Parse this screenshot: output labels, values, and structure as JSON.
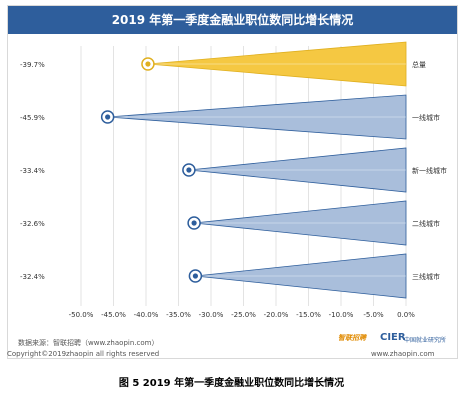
{
  "title": "2019 年第一季度金融业职位数同比增长情况",
  "chart_data": {
    "type": "bar",
    "categories": [
      "总量",
      "一线城市",
      "新一线城市",
      "二线城市",
      "三线城市"
    ],
    "values": [
      -39.7,
      -45.9,
      -33.4,
      -32.6,
      -32.4
    ],
    "value_labels": [
      "-39.7%",
      "-45.9%",
      "-33.4%",
      "-32.6%",
      "-32.4%"
    ],
    "x_ticks": [
      "-50.0%",
      "-45.0%",
      "-40.0%",
      "-35.0%",
      "-30.0%",
      "-25.0%",
      "-20.0%",
      "-15.0%",
      "-10.0%",
      "-5.0%",
      "0.0%"
    ],
    "xlim": [
      -50,
      0
    ],
    "grid": true,
    "colors": {
      "总量": "#f5c842",
      "others": "#a9bedb",
      "outline": "#2e5e9c",
      "title_bar": "#2e5e9c"
    }
  },
  "source": "数据来源：智联招聘（www.zhaopin.com）",
  "copyright": "Copyright©2019zhaopin all rights reserved",
  "website": "www.zhaopin.com",
  "logo_zhaopin": "智联招聘",
  "logo_cier": "CIER",
  "logo_cier_sub": "中国就业研究所",
  "caption": "图 5 2019 年第一季度金融业职位数同比增长情况"
}
